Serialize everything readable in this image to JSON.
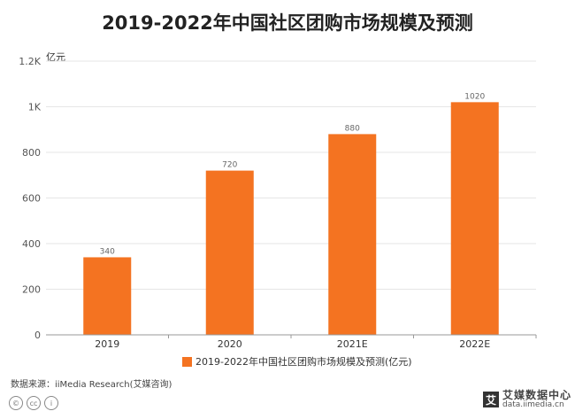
{
  "title": "2019-2022年中国社区团购市场规模及预测",
  "source": "数据来源：iiMedia Research(艾媒咨询)",
  "logo": {
    "name": "艾媒数据中心",
    "url": "data.iimedia.cn",
    "mark": "艾"
  },
  "cc_icons": [
    "©",
    "cc",
    "i"
  ],
  "colors": {
    "bar": "#F47321",
    "grid": "#e6e6e6",
    "axis": "#999999"
  },
  "chart_data": {
    "type": "bar",
    "title": "2019-2022年中国社区团购市场规模及预测",
    "unit_label": "亿元",
    "categories": [
      "2019",
      "2020",
      "2021E",
      "2022E"
    ],
    "series": [
      {
        "name": "2019-2022年中国社区团购市场规模及预测(亿元)",
        "values": [
          340,
          720,
          880,
          1020
        ]
      }
    ],
    "data_labels": [
      "340",
      "720",
      "880",
      "1020"
    ],
    "yticks": [
      0,
      200,
      400,
      600,
      800,
      1000,
      1200
    ],
    "ytick_labels": [
      "0",
      "200",
      "400",
      "600",
      "800",
      "1K",
      "1.2K"
    ],
    "ylim": [
      0,
      1200
    ],
    "grid": true,
    "legend_position": "bottom"
  }
}
